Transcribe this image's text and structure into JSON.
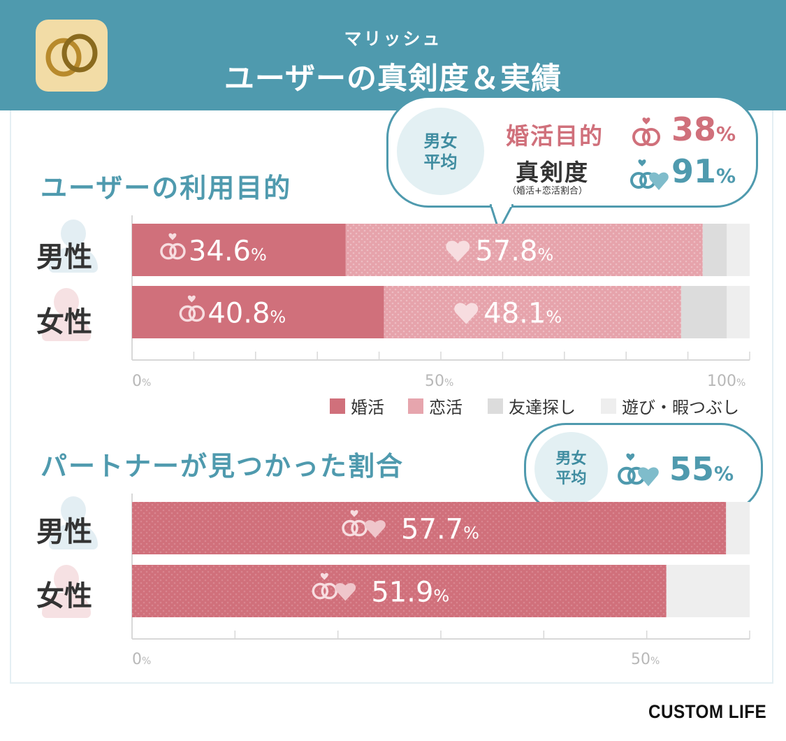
{
  "header": {
    "subtitle": "マリッシュ",
    "title": "ユーザーの真剣度＆実績"
  },
  "purpose_section": {
    "title": "ユーザーの利用目的",
    "bubble": {
      "avg_line1": "男女",
      "avg_line2": "平均",
      "marriage_label": "婚活目的",
      "marriage_value": "38",
      "seriousness_label": "真剣度",
      "seriousness_note": "（婚活+恋活割合）",
      "seriousness_value": "91",
      "unit": "%"
    },
    "rows": [
      {
        "label": "男性",
        "marriage_text": "34.6",
        "love_text": "57.8"
      },
      {
        "label": "女性",
        "marriage_text": "40.8",
        "love_text": "48.1"
      }
    ],
    "axis": {
      "t0": "0",
      "t50": "50",
      "t100": "100",
      "unit": "%"
    },
    "legend": [
      "婚活",
      "恋活",
      "友達探し",
      "遊び・暇つぶし"
    ]
  },
  "partner_section": {
    "title": "パートナーが見つかった割合",
    "bubble": {
      "avg_line1": "男女",
      "avg_line2": "平均",
      "value": "55",
      "unit": "%"
    },
    "rows": [
      {
        "label": "男性",
        "value_text": "57.7"
      },
      {
        "label": "女性",
        "value_text": "51.9"
      }
    ],
    "axis": {
      "t0": "0",
      "t50": "50",
      "unit": "%"
    }
  },
  "colors": {
    "marriage": "#d0707b",
    "love": "#e6a5ad",
    "friends": "#dcdcdc",
    "play": "#eeeeee",
    "teal": "#4f9aae"
  },
  "chart_data": [
    {
      "type": "bar",
      "title": "ユーザーの利用目的",
      "stacked": true,
      "orientation": "horizontal",
      "categories": [
        "男性",
        "女性"
      ],
      "series": [
        {
          "name": "婚活",
          "values": [
            34.6,
            40.8
          ]
        },
        {
          "name": "恋活",
          "values": [
            57.8,
            48.1
          ]
        },
        {
          "name": "友達探し",
          "values": [
            3.9,
            7.4
          ]
        },
        {
          "name": "遊び・暇つぶし",
          "values": [
            3.7,
            3.7
          ]
        }
      ],
      "xlim": [
        0,
        100
      ],
      "legend": "bottom-right"
    },
    {
      "type": "bar",
      "title": "パートナーが見つかった割合",
      "orientation": "horizontal",
      "categories": [
        "男性",
        "女性"
      ],
      "values": [
        57.7,
        51.9
      ],
      "xlim": [
        0,
        60
      ]
    }
  ],
  "brand": "CUSTOM LIFE"
}
